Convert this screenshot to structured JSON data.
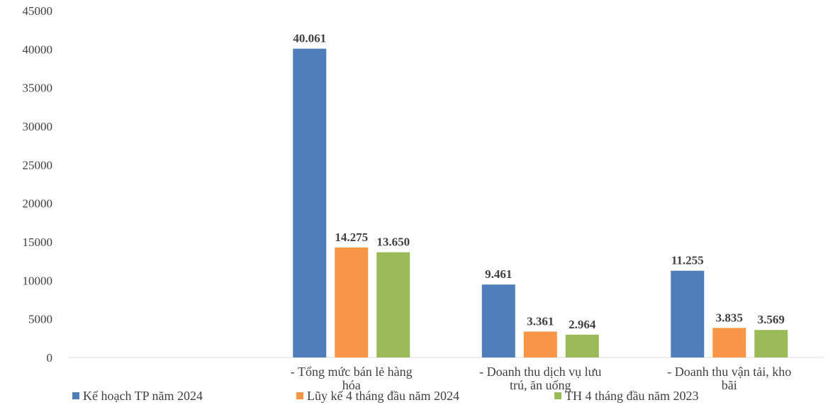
{
  "chart_data": {
    "type": "bar",
    "title": "",
    "xlabel": "",
    "ylabel": "",
    "ylim": [
      0,
      45000
    ],
    "y_ticks": [
      "0",
      "5000",
      "10000",
      "15000",
      "20000",
      "25000",
      "30000",
      "35000",
      "40000",
      "45000"
    ],
    "y_tick_values": [
      0,
      5000,
      10000,
      15000,
      20000,
      25000,
      30000,
      35000,
      40000,
      45000
    ],
    "grid": false,
    "legend_position": "bottom",
    "categories": [
      "",
      "- Tổng mức bán lẻ hàng hóa",
      "- Doanh thu dịch vụ lưu trú, ăn uống",
      "- Doanh thu vận tải, kho bãi"
    ],
    "category_label_lines": [
      [],
      [
        "- Tổng mức bán lẻ hàng",
        "hóa"
      ],
      [
        "- Doanh thu dịch vụ lưu",
        "trú, ăn uống"
      ],
      [
        "- Doanh thu vận tải, kho",
        "bãi"
      ]
    ],
    "series": [
      {
        "name": "Kế hoạch TP năm 2024",
        "color": "#4F7EBB",
        "values": [
          null,
          40061,
          9461,
          11255
        ],
        "labels": [
          "",
          "40.061",
          "9.461",
          "11.255"
        ]
      },
      {
        "name": "Lũy kế 4 tháng đầu năm 2024",
        "color": "#F79646",
        "values": [
          null,
          14275,
          3361,
          3835
        ],
        "labels": [
          "",
          "14.275",
          "3.361",
          "3.835"
        ]
      },
      {
        "name": "TH 4 tháng đầu năm 2023",
        "color": "#9BBB59",
        "values": [
          null,
          13650,
          2964,
          3569
        ],
        "labels": [
          "",
          "13.650",
          "2.964",
          "3.569"
        ]
      }
    ]
  }
}
